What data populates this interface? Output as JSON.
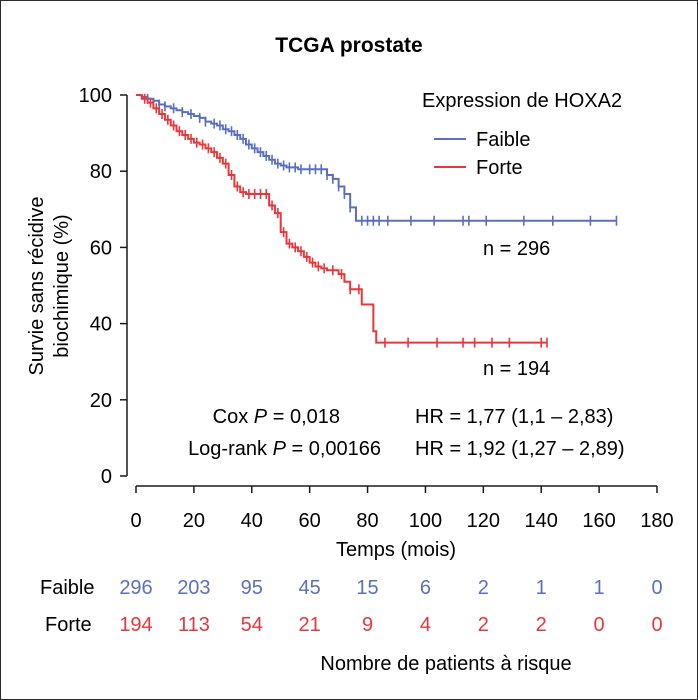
{
  "chart_data": {
    "type": "line",
    "subtype": "kaplan-meier",
    "title": "TCGA prostate",
    "xlabel": "Temps (mois)",
    "ylabel_line1": "Survie sans récidive",
    "ylabel_line2": "biochimique (%)",
    "xlim": [
      0,
      180
    ],
    "ylim": [
      0,
      100
    ],
    "xticks": [
      "0",
      "20",
      "40",
      "60",
      "80",
      "100",
      "120",
      "140",
      "160",
      "180"
    ],
    "yticks": [
      "0",
      "20",
      "40",
      "60",
      "80",
      "100"
    ],
    "grid": false,
    "legend": {
      "title": "Expression de HOXA2",
      "placement": "top-right"
    },
    "series": [
      {
        "name": "Faible",
        "color": "#5b6fbf",
        "n_label": "n = 296",
        "steps": [
          [
            0,
            100
          ],
          [
            2,
            99.5
          ],
          [
            4,
            99
          ],
          [
            6,
            98.5
          ],
          [
            8,
            97.5
          ],
          [
            10,
            97
          ],
          [
            12,
            96.5
          ],
          [
            14,
            96
          ],
          [
            16,
            95.5
          ],
          [
            18,
            95
          ],
          [
            20,
            94.5
          ],
          [
            22,
            94
          ],
          [
            24,
            93
          ],
          [
            26,
            92.5
          ],
          [
            28,
            92
          ],
          [
            30,
            91
          ],
          [
            32,
            90.5
          ],
          [
            34,
            89.5
          ],
          [
            36,
            88.5
          ],
          [
            38,
            87
          ],
          [
            40,
            86
          ],
          [
            42,
            85
          ],
          [
            44,
            84
          ],
          [
            46,
            83
          ],
          [
            48,
            82
          ],
          [
            50,
            81.5
          ],
          [
            52,
            81
          ],
          [
            56,
            80.5
          ],
          [
            60,
            80.5
          ],
          [
            64,
            80.5
          ],
          [
            66,
            79
          ],
          [
            68,
            78
          ],
          [
            70,
            76
          ],
          [
            72,
            74
          ],
          [
            74,
            70.5
          ],
          [
            76,
            67
          ],
          [
            166,
            67
          ]
        ],
        "censor_x": [
          4,
          8,
          10,
          13,
          16,
          19,
          22,
          24,
          27,
          29,
          31,
          33,
          35,
          37,
          39,
          41,
          43,
          45,
          47,
          49,
          51,
          53,
          55,
          57,
          60,
          62,
          64,
          66,
          68,
          70,
          72,
          74,
          78,
          80,
          82,
          84,
          87,
          95,
          103,
          113,
          115,
          121,
          134,
          144,
          157,
          166
        ]
      },
      {
        "name": "Forte",
        "color": "#e8373a",
        "n_label": "n = 194",
        "steps": [
          [
            0,
            100
          ],
          [
            2,
            99
          ],
          [
            4,
            98
          ],
          [
            6,
            96.5
          ],
          [
            8,
            95
          ],
          [
            10,
            93.5
          ],
          [
            12,
            92
          ],
          [
            14,
            90.5
          ],
          [
            16,
            89.5
          ],
          [
            18,
            88.5
          ],
          [
            20,
            87.5
          ],
          [
            22,
            87
          ],
          [
            24,
            86
          ],
          [
            26,
            85
          ],
          [
            28,
            83.5
          ],
          [
            30,
            82
          ],
          [
            32,
            79
          ],
          [
            34,
            76
          ],
          [
            36,
            74.5
          ],
          [
            38,
            74
          ],
          [
            44,
            74
          ],
          [
            46,
            71
          ],
          [
            48,
            69
          ],
          [
            50,
            64
          ],
          [
            52,
            61
          ],
          [
            54,
            60
          ],
          [
            56,
            59
          ],
          [
            58,
            57.5
          ],
          [
            60,
            56
          ],
          [
            62,
            55
          ],
          [
            64,
            54.5
          ],
          [
            66,
            54
          ],
          [
            70,
            53
          ],
          [
            72,
            51
          ],
          [
            74,
            49
          ],
          [
            78,
            45
          ],
          [
            82,
            38
          ],
          [
            83,
            35
          ],
          [
            142,
            35
          ]
        ],
        "censor_x": [
          3,
          5,
          7,
          9,
          11,
          13,
          15,
          17,
          19,
          21,
          23,
          25,
          27,
          29,
          31,
          33,
          35,
          37,
          39,
          41,
          43,
          45,
          47,
          49,
          51,
          53,
          55,
          57,
          59,
          61,
          63,
          65,
          68,
          71,
          74,
          77,
          86,
          94,
          104,
          113,
          117,
          123,
          129,
          140,
          142
        ]
      }
    ],
    "annotations": {
      "cox_label": "Cox",
      "p_symbol": "P",
      "cox_value": " = 0,018",
      "logrank_label": "Log-rank",
      "logrank_value": " = 0,00166",
      "hr1": "HR = 1,77 (1,1 – 2,83)",
      "hr2": "HR = 1,92 (1,27 – 2,89)"
    },
    "risk_table": {
      "title": "Nombre de patients à risque",
      "rows": [
        {
          "label": "Faible",
          "color": "#5b6fbf",
          "values": [
            "296",
            "203",
            "95",
            "45",
            "15",
            "6",
            "2",
            "1",
            "1",
            "0"
          ]
        },
        {
          "label": "Forte",
          "color": "#e8373a",
          "values": [
            "194",
            "113",
            "54",
            "21",
            "9",
            "4",
            "2",
            "2",
            "0",
            "0"
          ]
        }
      ]
    }
  }
}
